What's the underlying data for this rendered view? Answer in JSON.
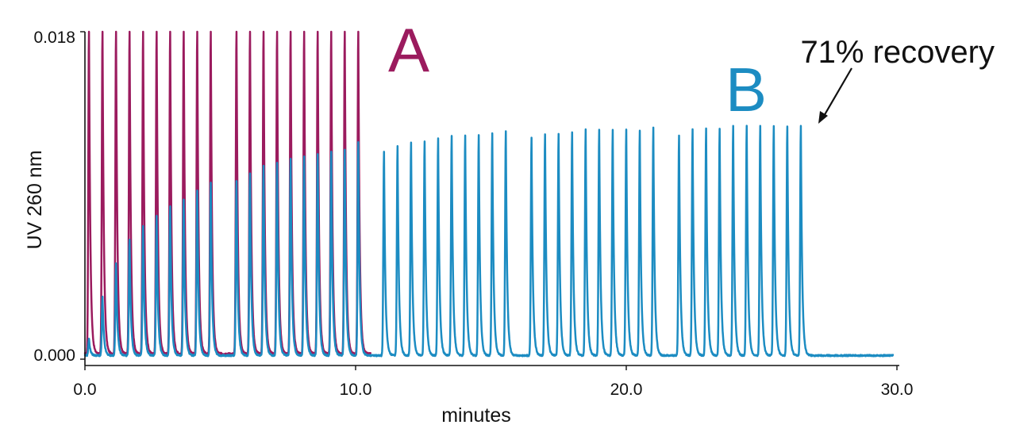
{
  "chart_data": {
    "type": "line",
    "title": "",
    "xlabel": "minutes",
    "ylabel": "UV 260 nm",
    "xlim": [
      0,
      30
    ],
    "ylim": [
      0,
      0.018
    ],
    "x_ticks": [
      {
        "value": 0,
        "label": "0.0"
      },
      {
        "value": 10,
        "label": "10.0"
      },
      {
        "value": 20,
        "label": "20.0"
      },
      {
        "value": 30,
        "label": "30.0"
      }
    ],
    "y_ticks": [
      {
        "value": 0,
        "label": "0.000"
      },
      {
        "value": 0.018,
        "label": "0.018"
      }
    ],
    "grid": false,
    "series": [
      {
        "name": "A",
        "color": "#9B1B5E",
        "baseline": 0.0003,
        "peak_times": [
          0.15,
          0.65,
          1.15,
          1.65,
          2.15,
          2.65,
          3.15,
          3.65,
          4.15,
          4.65,
          5.6,
          6.1,
          6.6,
          7.1,
          7.6,
          8.1,
          8.6,
          9.1,
          9.6,
          10.1
        ],
        "peak_heights": [
          0.018,
          0.018,
          0.018,
          0.018,
          0.018,
          0.018,
          0.018,
          0.018,
          0.018,
          0.018,
          0.018,
          0.018,
          0.018,
          0.018,
          0.018,
          0.018,
          0.018,
          0.018,
          0.018,
          0.018
        ]
      },
      {
        "name": "B",
        "color": "#1C8CC2",
        "baseline": 0.0002,
        "peak_times": [
          0.15,
          0.65,
          1.15,
          1.65,
          2.15,
          2.65,
          3.15,
          3.65,
          4.15,
          4.65,
          5.6,
          6.1,
          6.6,
          7.1,
          7.6,
          8.1,
          8.6,
          9.1,
          9.6,
          10.1,
          11.05,
          11.55,
          12.05,
          12.55,
          13.05,
          13.55,
          14.05,
          14.55,
          15.05,
          15.55,
          16.5,
          17.0,
          17.5,
          18.0,
          18.5,
          19.0,
          19.5,
          20.0,
          20.5,
          21.0,
          21.95,
          22.45,
          22.95,
          23.45,
          23.95,
          24.45,
          24.95,
          25.45,
          25.95,
          26.45
        ],
        "peak_heights": [
          0.0009,
          0.0032,
          0.0051,
          0.0064,
          0.0071,
          0.0077,
          0.0082,
          0.0086,
          0.0091,
          0.0095,
          0.0096,
          0.01,
          0.0104,
          0.0106,
          0.0108,
          0.0109,
          0.0111,
          0.0112,
          0.0113,
          0.0117,
          0.0112,
          0.0115,
          0.0117,
          0.0118,
          0.0119,
          0.0121,
          0.0121,
          0.0121,
          0.0122,
          0.0123,
          0.012,
          0.0122,
          0.0122,
          0.0123,
          0.0124,
          0.0124,
          0.0124,
          0.0124,
          0.0124,
          0.0125,
          0.0121,
          0.0124,
          0.0125,
          0.0125,
          0.0126,
          0.0126,
          0.0126,
          0.0126,
          0.0126,
          0.0126
        ]
      }
    ],
    "annotations": {
      "label_a": "A",
      "label_b": "B",
      "recovery_text": "71% recovery",
      "recovery_points_to": {
        "x": 26.45,
        "y": 0.0126
      }
    }
  }
}
